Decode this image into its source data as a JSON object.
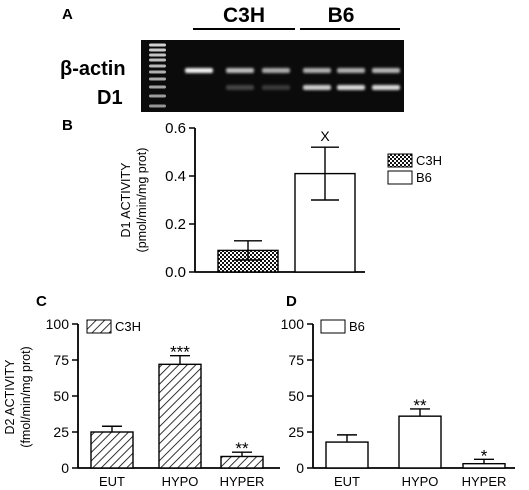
{
  "gel": {
    "panel_letter": "A",
    "group_labels": [
      "C3H",
      "B6"
    ],
    "row_labels": [
      "β-actin",
      "D1"
    ]
  },
  "chart_data": [
    {
      "panel": "B",
      "type": "bar",
      "categories": [
        "C3H",
        "B6"
      ],
      "values": [
        0.09,
        0.41
      ],
      "errors": [
        0.04,
        0.11
      ],
      "patterns": [
        "crosshatch",
        "none"
      ],
      "annotations": [
        "",
        "X"
      ],
      "ylabel_lines": [
        "D1 ACTIVITY",
        "(pmol/min/mg prot)"
      ],
      "ylim": [
        0,
        0.6
      ],
      "yticks": [
        0.0,
        0.2,
        0.4,
        0.6
      ],
      "ytick_labels": [
        "0.0",
        "0.2",
        "0.4",
        "0.6"
      ],
      "legend": [
        "C3H",
        "B6"
      ],
      "legend_position": "right"
    },
    {
      "panel": "C",
      "type": "bar",
      "categories": [
        "EUT",
        "HYPO",
        "HYPER"
      ],
      "values": [
        25,
        72,
        8
      ],
      "errors": [
        4,
        6,
        3
      ],
      "annotations": [
        "",
        "***",
        "**"
      ],
      "ylabel_lines": [
        "D2 ACTIVITY",
        "(fmol/min/mg prot)"
      ],
      "ylim": [
        0,
        100
      ],
      "yticks": [
        0,
        25,
        50,
        75,
        100
      ],
      "ytick_labels": [
        "0",
        "25",
        "50",
        "75",
        "100"
      ],
      "legend": [
        "C3H"
      ],
      "legend_position": "top-left",
      "pattern": "diagonal"
    },
    {
      "panel": "D",
      "type": "bar",
      "categories": [
        "EUT",
        "HYPO",
        "HYPER"
      ],
      "values": [
        18,
        36,
        3
      ],
      "errors": [
        5,
        5,
        3
      ],
      "annotations": [
        "",
        "**",
        "*"
      ],
      "ylim": [
        0,
        100
      ],
      "yticks": [
        0,
        25,
        50,
        75,
        100
      ],
      "ytick_labels": [
        "0",
        "25",
        "50",
        "75",
        "100"
      ],
      "legend": [
        "B6"
      ],
      "legend_position": "top-left",
      "pattern": "none"
    }
  ]
}
